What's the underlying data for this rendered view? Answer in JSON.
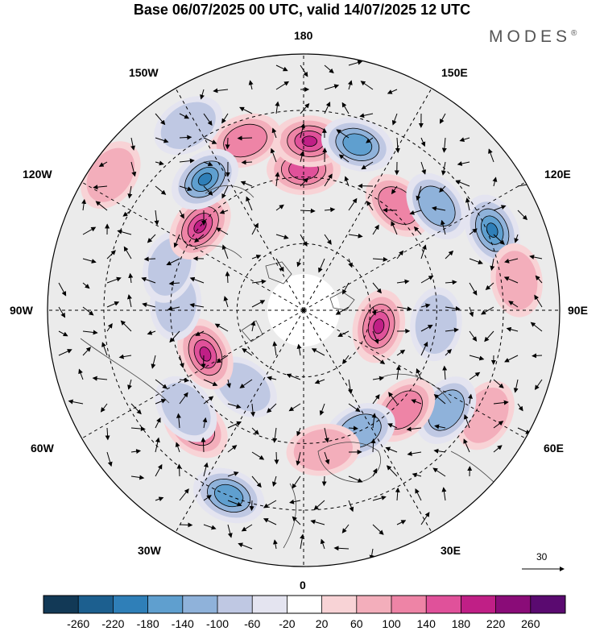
{
  "title": "Base 06/07/2025 00 UTC, valid 14/07/2025 12 UTC",
  "brand": {
    "name": "MODES",
    "mark": "®"
  },
  "longitude_labels": {
    "lon_180": "180",
    "lon_150W": "150W",
    "lon_150E": "150E",
    "lon_120W": "120W",
    "lon_120E": "120E",
    "lon_90W": "90W",
    "lon_90E": "90E",
    "lon_60W": "60W",
    "lon_60E": "60E",
    "lon_30W": "30W",
    "lon_30E": "30E",
    "lon_0": "0"
  },
  "reference_vector": {
    "value": "30"
  },
  "colorbar": {
    "ticks": [
      "-260",
      "-220",
      "-180",
      "-140",
      "-100",
      "-60",
      "-20",
      "20",
      "60",
      "100",
      "140",
      "180",
      "220",
      "260"
    ],
    "colors": [
      "#123956",
      "#1c5f8f",
      "#2f7fb8",
      "#5f9fcf",
      "#8fb2da",
      "#bfc8e3",
      "#e4e4f0",
      "#ffffff",
      "#f8d3d6",
      "#f3aebb",
      "#ee84a6",
      "#e0519a",
      "#c01f86",
      "#8a0c78",
      "#5a0a70"
    ]
  },
  "colors": {
    "neutral_fill": "#ebebeb",
    "grid": "#000000"
  },
  "anomalies": [
    {
      "type": "positive",
      "level": 4,
      "lon": 180,
      "dist": 0.55
    },
    {
      "type": "positive",
      "level": 5,
      "lon": 178,
      "dist": 0.66
    },
    {
      "type": "negative",
      "level": 4,
      "lon": 162,
      "dist": 0.68
    },
    {
      "type": "positive",
      "level": 3,
      "lon": -161,
      "dist": 0.7
    },
    {
      "type": "positive",
      "level": 3,
      "lon": 138,
      "dist": 0.55
    },
    {
      "type": "negative",
      "level": 3,
      "lon": 128,
      "dist": 0.66
    },
    {
      "type": "negative",
      "level": 5,
      "lon": 113,
      "dist": 0.8
    },
    {
      "type": "positive",
      "level": 2,
      "lon": 98,
      "dist": 0.84
    },
    {
      "type": "positive",
      "level": 5,
      "lon": 78,
      "dist": 0.3
    },
    {
      "type": "positive",
      "level": 2,
      "lon": 60,
      "dist": 0.82
    },
    {
      "type": "negative",
      "level": 2,
      "lon": 84,
      "dist": 0.52
    },
    {
      "type": "negative",
      "level": 3,
      "lon": 55,
      "dist": 0.68
    },
    {
      "type": "positive",
      "level": 3,
      "lon": 45,
      "dist": 0.55
    },
    {
      "type": "negative",
      "level": 3,
      "lon": 25,
      "dist": 0.52
    },
    {
      "type": "positive",
      "level": 2,
      "lon": 8,
      "dist": 0.55
    },
    {
      "type": "negative",
      "level": 4,
      "lon": -22,
      "dist": 0.78
    },
    {
      "type": "positive",
      "level": 3,
      "lon": -43,
      "dist": 0.62
    },
    {
      "type": "negative",
      "level": 2,
      "lon": -50,
      "dist": 0.6
    },
    {
      "type": "negative",
      "level": 2,
      "lon": -38,
      "dist": 0.38
    },
    {
      "type": "positive",
      "level": 5,
      "lon": -66,
      "dist": 0.42
    },
    {
      "type": "negative",
      "level": 2,
      "lon": -93,
      "dist": 0.5
    },
    {
      "type": "negative",
      "level": 2,
      "lon": -108,
      "dist": 0.55
    },
    {
      "type": "positive",
      "level": 5,
      "lon": -129,
      "dist": 0.52
    },
    {
      "type": "negative",
      "level": 5,
      "lon": -143,
      "dist": 0.64
    },
    {
      "type": "negative",
      "level": 2,
      "lon": -148,
      "dist": 0.85
    },
    {
      "type": "positive",
      "level": 2,
      "lon": -125,
      "dist": 0.92
    }
  ]
}
